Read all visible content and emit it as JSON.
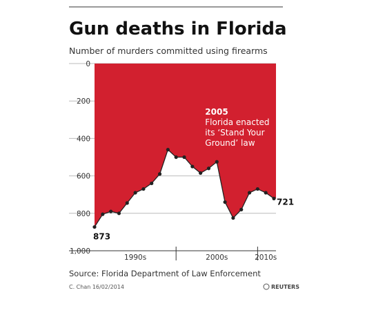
{
  "chart_data": {
    "type": "area",
    "title": "Gun deaths in Florida",
    "subtitle": "Number of murders committed using firearms",
    "source": "Source: Florida Department of Law Enforcement",
    "credit": "C. Chan 16/02/2014",
    "brand": "REUTERS",
    "x": [
      1990,
      1991,
      1992,
      1993,
      1994,
      1995,
      1996,
      1997,
      1998,
      1999,
      2000,
      2001,
      2002,
      2003,
      2004,
      2005,
      2006,
      2007,
      2008,
      2009,
      2010,
      2011,
      2012
    ],
    "values": [
      873,
      805,
      790,
      800,
      745,
      690,
      670,
      640,
      590,
      460,
      500,
      500,
      550,
      585,
      560,
      525,
      740,
      825,
      780,
      690,
      670,
      690,
      721
    ],
    "color": "#d2202f",
    "inverted_y": true,
    "ylim": [
      0,
      1000
    ],
    "yticks": [
      0,
      200,
      400,
      600,
      800,
      {
        "value": 1000,
        "label": "1,000"
      }
    ],
    "xlim": [
      1990,
      2012
    ],
    "xticks": [
      {
        "value": 1995,
        "label": "1990s"
      },
      {
        "value": 2005,
        "label": "2000s"
      },
      {
        "value": 2011,
        "label": "2010s"
      }
    ],
    "decade_dividers": [
      2000,
      2010
    ],
    "grid": true,
    "annotation": {
      "x": 2005,
      "lines": [
        "2005",
        "Florida enacted",
        "its ‘Stand Your",
        "Ground’ law"
      ]
    }
  }
}
